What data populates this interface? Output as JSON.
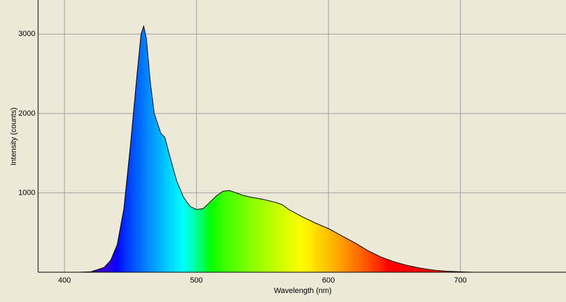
{
  "chart_data": {
    "type": "area",
    "x_label": "Wavelength (nm)",
    "y_label": "Intensity (counts)",
    "x": [
      410,
      420,
      430,
      435,
      440,
      445,
      450,
      455,
      458,
      460,
      462,
      465,
      468,
      470,
      473,
      476,
      480,
      485,
      490,
      495,
      500,
      505,
      510,
      515,
      520,
      525,
      530,
      535,
      540,
      550,
      560,
      565,
      570,
      580,
      590,
      600,
      610,
      620,
      630,
      640,
      650,
      660,
      670,
      680,
      690,
      700,
      710
    ],
    "values": [
      0,
      5,
      60,
      150,
      350,
      800,
      1600,
      2500,
      3000,
      3100,
      2950,
      2400,
      2000,
      1900,
      1750,
      1700,
      1450,
      1150,
      950,
      830,
      790,
      800,
      880,
      960,
      1020,
      1030,
      1000,
      970,
      950,
      920,
      880,
      850,
      790,
      700,
      620,
      550,
      460,
      370,
      270,
      190,
      130,
      85,
      50,
      25,
      12,
      5,
      0
    ],
    "line_color": "#000000",
    "xlim": [
      380,
      780
    ],
    "ylim": [
      0,
      3430
    ],
    "xticks": [
      400,
      500,
      600,
      700
    ],
    "yticks": [
      1000,
      2000,
      3000
    ],
    "grid": true
  }
}
